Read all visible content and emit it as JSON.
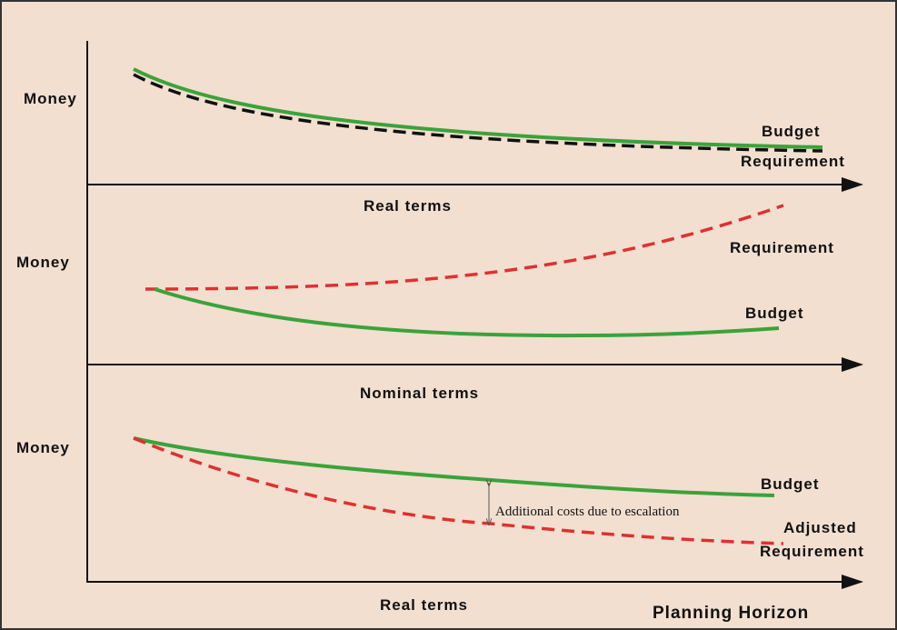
{
  "panels": [
    {
      "y_label": "Money",
      "x_label": "Real terms",
      "curves": [
        {
          "label": "Budget"
        },
        {
          "label": "Requirement"
        }
      ]
    },
    {
      "y_label": "Money",
      "x_label": "Nominal terms",
      "curves": [
        {
          "label": "Requirement"
        },
        {
          "label": "Budget"
        }
      ]
    },
    {
      "y_label": "Money",
      "x_label": "Real terms",
      "curves": [
        {
          "label": "Budget"
        },
        {
          "label": [
            "Adjusted",
            "Requirement"
          ]
        }
      ],
      "annotation": "Additional costs due to escalation"
    }
  ],
  "horizon_label": "Planning Horizon"
}
